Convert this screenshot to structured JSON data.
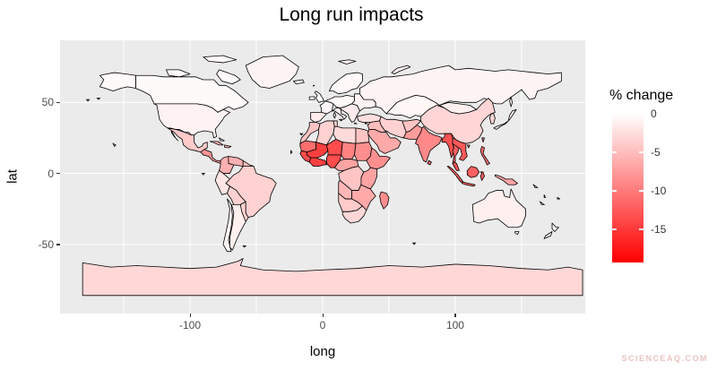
{
  "watermark": "SCIENCEAQ.COM",
  "chart_data": {
    "type": "heatmap",
    "subtype": "choropleth-world-map",
    "title": "Long run impacts",
    "xlabel": "long",
    "ylabel": "lat",
    "xlim": [
      -198,
      198
    ],
    "ylim": [
      -98.75,
      93.75
    ],
    "panel_bg": "#ebebeb",
    "gridline_color": "#ffffff",
    "border_color": "#000000",
    "grid": "on",
    "x_ticks": [
      {
        "value": -100,
        "label": "-100"
      },
      {
        "value": 0,
        "label": "0"
      },
      {
        "value": 100,
        "label": "100"
      }
    ],
    "y_ticks": [
      {
        "value": 50,
        "label": "50"
      },
      {
        "value": 0,
        "label": "0"
      },
      {
        "value": -50,
        "label": "-50"
      }
    ],
    "x_gridlines": [
      -150,
      -100,
      -50,
      0,
      50,
      100,
      150
    ],
    "y_gridlines": [
      50,
      0,
      -50
    ],
    "legend": {
      "title": "% change",
      "position": "right",
      "low_color": "#ff0000",
      "high_color": "#ffffff",
      "domain_max": 0,
      "domain_min": -19.3,
      "ticks": [
        {
          "value": 0,
          "label": "0"
        },
        {
          "value": -5,
          "label": "-5"
        },
        {
          "value": -10,
          "label": "-10"
        },
        {
          "value": -15,
          "label": "-15"
        }
      ]
    },
    "regions": [
      {
        "id": "antarctica",
        "name": "Antarctica",
        "value": -3
      },
      {
        "id": "greenland",
        "name": "Greenland",
        "value": -0.8
      },
      {
        "id": "canada",
        "name": "Canada",
        "value": -0.4
      },
      {
        "id": "alaska",
        "name": "Alaska (USA)",
        "value": -0.4
      },
      {
        "id": "usa",
        "name": "United States",
        "value": -1
      },
      {
        "id": "mexico",
        "name": "Mexico",
        "value": -4
      },
      {
        "id": "central_america",
        "name": "Central America",
        "value": -8
      },
      {
        "id": "caribbean",
        "name": "Caribbean",
        "value": -6
      },
      {
        "id": "colombia",
        "name": "Colombia",
        "value": -6
      },
      {
        "id": "venezuela",
        "name": "Venezuela",
        "value": -6
      },
      {
        "id": "guyanas",
        "name": "Guyanas",
        "value": -5
      },
      {
        "id": "brazil",
        "name": "Brazil",
        "value": -3.5
      },
      {
        "id": "peru",
        "name": "Peru",
        "value": -2
      },
      {
        "id": "bolivia",
        "name": "Bolivia",
        "value": -3.5
      },
      {
        "id": "paraguay_uruguay",
        "name": "Paraguay/Uruguay",
        "value": -3.5
      },
      {
        "id": "chile",
        "name": "Chile",
        "value": -0.7
      },
      {
        "id": "argentina",
        "name": "Argentina",
        "value": -1.2
      },
      {
        "id": "iceland",
        "name": "Iceland",
        "value": -0.3
      },
      {
        "id": "uk_ireland",
        "name": "UK/Ireland",
        "value": -0.2
      },
      {
        "id": "scandinavia",
        "name": "Scandinavia",
        "value": -0.5
      },
      {
        "id": "france",
        "name": "France",
        "value": -0.6
      },
      {
        "id": "iberia",
        "name": "Iberia",
        "value": -1.5
      },
      {
        "id": "central_europe",
        "name": "Central Europe",
        "value": -0.4
      },
      {
        "id": "italy",
        "name": "Italy",
        "value": -1.2
      },
      {
        "id": "balkans",
        "name": "Balkans",
        "value": -1.5
      },
      {
        "id": "east_europe",
        "name": "Eastern Europe",
        "value": -1
      },
      {
        "id": "russia",
        "name": "Russia",
        "value": -0.8
      },
      {
        "id": "kazakh",
        "name": "Central Asia",
        "value": -0.7
      },
      {
        "id": "turkey",
        "name": "Turkey",
        "value": -2.5
      },
      {
        "id": "levant",
        "name": "Levant/Iraq",
        "value": -5
      },
      {
        "id": "saudi",
        "name": "Arabian Peninsula",
        "value": -6.5
      },
      {
        "id": "iran",
        "name": "Iran",
        "value": -3.5
      },
      {
        "id": "afghan",
        "name": "Afghanistan",
        "value": -4.5
      },
      {
        "id": "pakistan",
        "name": "Pakistan",
        "value": -7.5
      },
      {
        "id": "india",
        "name": "India",
        "value": -9
      },
      {
        "id": "sri_lanka",
        "name": "Sri Lanka",
        "value": -12
      },
      {
        "id": "china",
        "name": "China",
        "value": -3.2
      },
      {
        "id": "mongolia",
        "name": "Mongolia",
        "value": -1.2
      },
      {
        "id": "korea",
        "name": "Korea",
        "value": -3
      },
      {
        "id": "japan",
        "name": "Japan",
        "value": -1.2
      },
      {
        "id": "myanmar",
        "name": "Myanmar",
        "value": -13
      },
      {
        "id": "thailand",
        "name": "Thailand",
        "value": -12
      },
      {
        "id": "indochina",
        "name": "Vietnam/Laos/Cambodia",
        "value": -12.5
      },
      {
        "id": "malay",
        "name": "Malaysia",
        "value": -13
      },
      {
        "id": "indonesia",
        "name": "Indonesia",
        "value": -12
      },
      {
        "id": "new_guinea",
        "name": "New Guinea",
        "value": -7
      },
      {
        "id": "philippines",
        "name": "Philippines",
        "value": -11
      },
      {
        "id": "taiwan_hainan",
        "name": "Taiwan/Hainan",
        "value": -9
      },
      {
        "id": "morocco",
        "name": "Morocco/W. Sahara",
        "value": -4.5
      },
      {
        "id": "algeria",
        "name": "Algeria",
        "value": -3.5
      },
      {
        "id": "tunisia",
        "name": "Tunisia",
        "value": -3.5
      },
      {
        "id": "libya",
        "name": "Libya",
        "value": -2.8
      },
      {
        "id": "egypt",
        "name": "Egypt",
        "value": -4.5
      },
      {
        "id": "mauritania",
        "name": "Mauritania",
        "value": -11
      },
      {
        "id": "mali",
        "name": "Mali",
        "value": -14.5
      },
      {
        "id": "niger",
        "name": "Niger",
        "value": -13.5
      },
      {
        "id": "chad",
        "name": "Chad",
        "value": -9.5
      },
      {
        "id": "sudan",
        "name": "Sudan",
        "value": -8.5
      },
      {
        "id": "horn",
        "name": "Ethiopia/Somalia",
        "value": -8.5
      },
      {
        "id": "senegal_guinea",
        "name": "Senegal/Guinea",
        "value": -13.5
      },
      {
        "id": "ivory_ghana",
        "name": "Ivory Coast/Ghana",
        "value": -14.5
      },
      {
        "id": "nigeria",
        "name": "Nigeria",
        "value": -13.5
      },
      {
        "id": "cameroon_car",
        "name": "Cameroon/C.A.R.",
        "value": -7
      },
      {
        "id": "drc",
        "name": "D.R. Congo",
        "value": -4.5
      },
      {
        "id": "east_africa",
        "name": "Kenya/Tanzania",
        "value": -7
      },
      {
        "id": "angola",
        "name": "Angola",
        "value": -5.5
      },
      {
        "id": "zambia_moz",
        "name": "Zambia/Mozambique",
        "value": -6.5
      },
      {
        "id": "namibia_bots",
        "name": "Namibia/Botswana",
        "value": -4
      },
      {
        "id": "south_africa",
        "name": "South Africa",
        "value": -3
      },
      {
        "id": "madagascar",
        "name": "Madagascar",
        "value": -8.5
      },
      {
        "id": "australia",
        "name": "Australia",
        "value": -1.2
      },
      {
        "id": "tasmania",
        "name": "Tasmania",
        "value": -1.2
      },
      {
        "id": "new_zealand",
        "name": "New Zealand",
        "value": -0.2
      }
    ]
  }
}
